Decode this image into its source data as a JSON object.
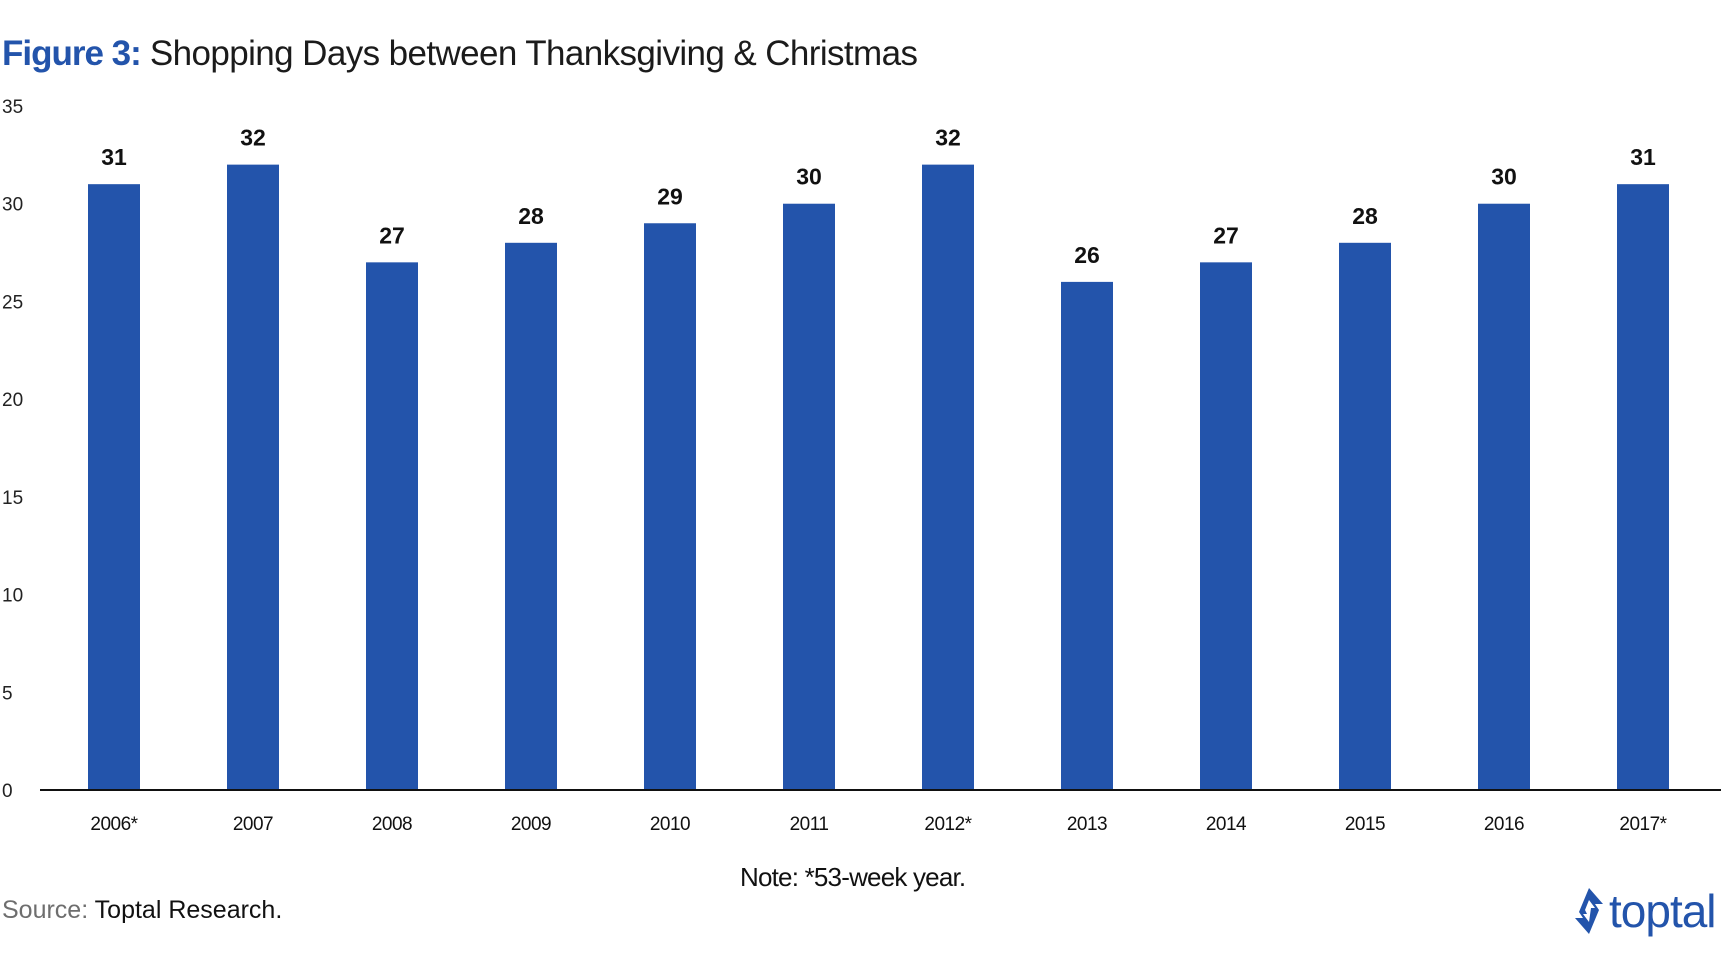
{
  "title": {
    "prefix": "Figure 3:",
    "text": "Shopping Days between Thanksgiving & Christmas"
  },
  "note": "Note: *53-week year.",
  "source": {
    "label": "Source:",
    "text": "Toptal Research."
  },
  "logo": {
    "icon": "toptal-logo-icon",
    "wordmark": "toptal"
  },
  "colors": {
    "bar": "#2354ab",
    "accent": "#2354ab",
    "text": "#111111"
  },
  "chart_data": {
    "type": "bar",
    "categories": [
      "2006*",
      "2007",
      "2008",
      "2009",
      "2010",
      "2011",
      "2012*",
      "2013",
      "2014",
      "2015",
      "2016",
      "2017*"
    ],
    "values": [
      31,
      32,
      27,
      28,
      29,
      30,
      32,
      26,
      27,
      28,
      30,
      31
    ],
    "yticks": [
      0,
      5,
      10,
      15,
      20,
      25,
      30,
      35
    ],
    "ylim": [
      0,
      35
    ],
    "data_labels": true,
    "grid": false,
    "legend": "none"
  }
}
